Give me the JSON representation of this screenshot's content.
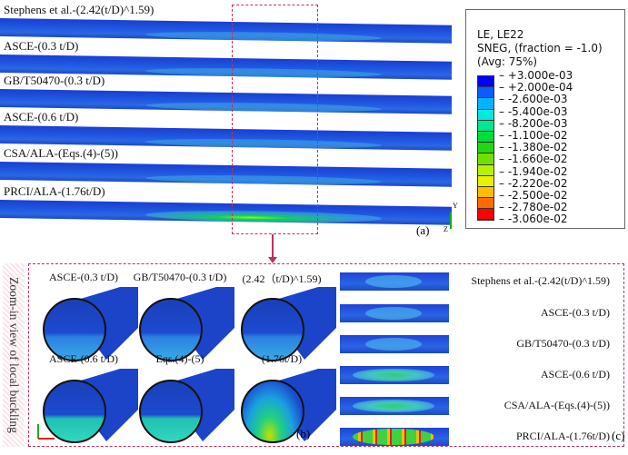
{
  "panel_a": {
    "labels": [
      "Stephens et al.-(2.42(t/D)^1.59)",
      "ASCE-(0.3 t/D)",
      "GB/T50470-(0.3 t/D)",
      "ASCE-(0.6 t/D)",
      "CSA/ALA-(Eqs.(4)-(5))",
      "PRCI/ALA-(1.76t/D)"
    ],
    "tag": "(a)",
    "axes": {
      "y": "Y",
      "z": "Z",
      "x": "X"
    }
  },
  "legend": {
    "line1": "LE, LE22",
    "line2": "SNEG, (fraction = -1.0)",
    "line3": "(Avg: 75%)",
    "ticks": [
      "+3.000e-03",
      "+2.000e-04",
      "-2.600e-03",
      "-5.400e-03",
      "-8.200e-03",
      "-1.100e-02",
      "-1.380e-02",
      "-1.660e-02",
      "-1.940e-02",
      "-2.220e-02",
      "-2.500e-02",
      "-2.780e-02",
      "-3.060e-02"
    ],
    "colors": [
      "#0000ff",
      "#0a5cff",
      "#00b4ff",
      "#00eadd",
      "#00e890",
      "#00dc3c",
      "#22d814",
      "#70e000",
      "#b8f000",
      "#e8f000",
      "#ffbc00",
      "#ff6a00",
      "#ff0000"
    ]
  },
  "side_label": "Zoom-in view of local buckling",
  "panel_b": {
    "labels": [
      "ASCE-(0.3 t/D)",
      "GB/T50470-(0.3 t/D)",
      "(2.42（t/D)^1.59)",
      "ASCE-(0.6 t/D)",
      "Eqs.(4)-(5)",
      "(1.76t/D)"
    ],
    "tag": "(b)",
    "axes": {
      "y": "Y",
      "x": "X",
      "z": "Z"
    }
  },
  "panel_c": {
    "labels": [
      "Stephens et al.-(2.42(t/D)^1.59)",
      "ASCE-(0.3 t/D)",
      "GB/T50470-(0.3 t/D)",
      "ASCE-(0.6 t/D)",
      "CSA/ALA-(Eqs.(4)-(5))",
      "PRCI/ALA-(1.76t/D)"
    ],
    "tag": "(c)",
    "axes": {
      "x": "X",
      "z": "Z"
    }
  }
}
